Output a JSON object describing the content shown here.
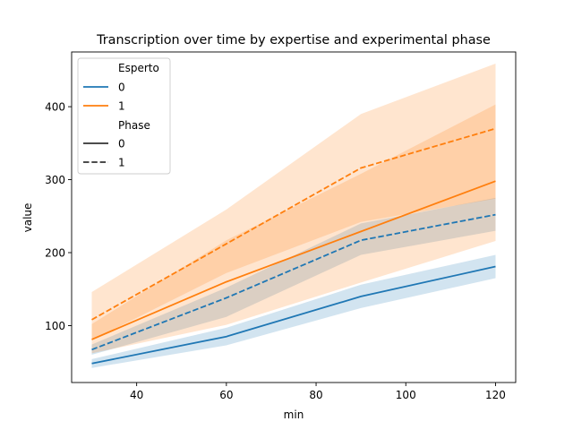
{
  "chart_data": {
    "type": "line",
    "title": "Transcription over time by expertise and experimental phase",
    "xlabel": "min",
    "ylabel": "value",
    "xlim": [
      25.5,
      124.5
    ],
    "ylim": [
      22,
      475
    ],
    "xticks": [
      40,
      60,
      80,
      100,
      120
    ],
    "yticks": [
      100,
      200,
      300,
      400
    ],
    "x": [
      30,
      60,
      90,
      120
    ],
    "legend": {
      "location": "upper left",
      "hue_title": "Esperto",
      "hue_entries": [
        {
          "label": "0",
          "color": "#1f77b4"
        },
        {
          "label": "1",
          "color": "#ff7f0e"
        }
      ],
      "style_title": "Phase",
      "style_entries": [
        {
          "label": "0",
          "dash": "solid"
        },
        {
          "label": "1",
          "dash": "dashed"
        }
      ]
    },
    "series": [
      {
        "esperto": "0",
        "phase": "0",
        "color": "#1f77b4",
        "dash": "solid",
        "values": [
          48,
          85,
          140,
          181
        ],
        "ci_lower": [
          42,
          73,
          124,
          165
        ],
        "ci_upper": [
          54,
          97,
          156,
          197
        ]
      },
      {
        "esperto": "0",
        "phase": "1",
        "color": "#1f77b4",
        "dash": "dashed",
        "values": [
          67,
          138,
          217,
          252
        ],
        "ci_lower": [
          60,
          112,
          197,
          230
        ],
        "ci_upper": [
          74,
          152,
          240,
          275
        ]
      },
      {
        "esperto": "1",
        "phase": "0",
        "color": "#ff7f0e",
        "dash": "solid",
        "values": [
          81,
          160,
          229,
          298
        ],
        "ci_lower": [
          62,
          101,
          159,
          216
        ],
        "ci_upper": [
          102,
          217,
          308,
          403
        ]
      },
      {
        "esperto": "1",
        "phase": "1",
        "color": "#ff7f0e",
        "dash": "dashed",
        "values": [
          108,
          212,
          316,
          370
        ],
        "ci_lower": [
          80,
          172,
          242,
          274
        ],
        "ci_upper": [
          146,
          259,
          390,
          459
        ]
      }
    ]
  }
}
